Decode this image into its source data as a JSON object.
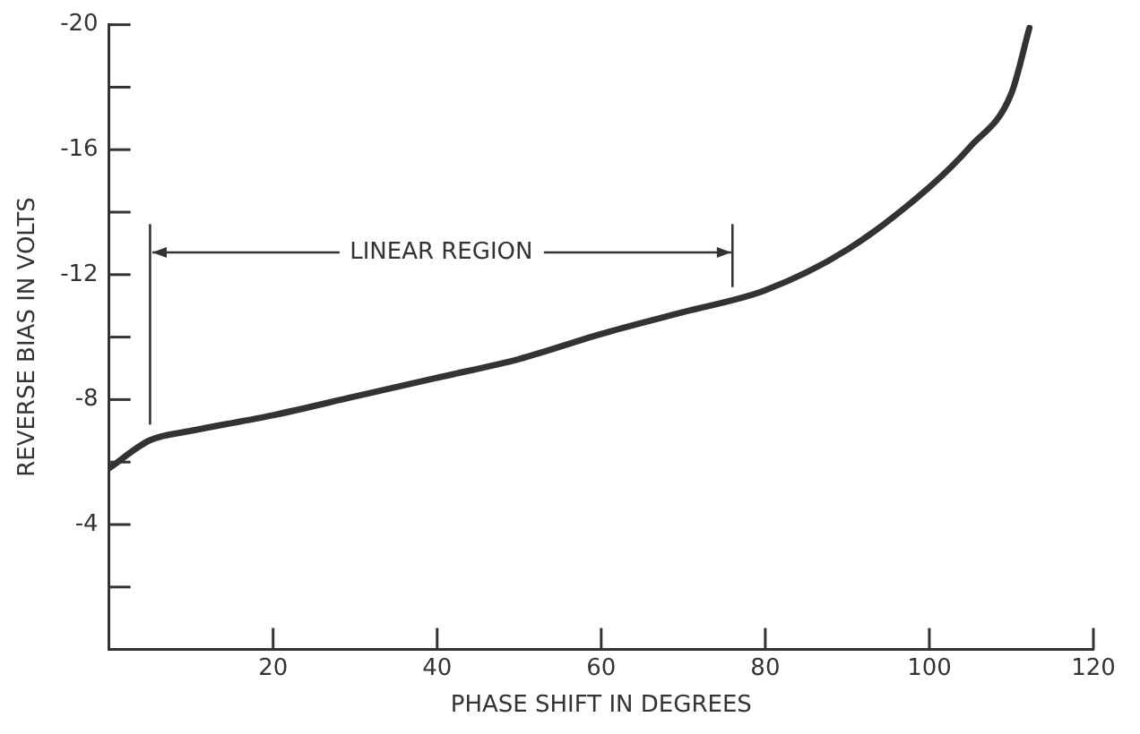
{
  "chart_data": {
    "type": "line",
    "xlabel": "PHASE SHIFT IN DEGREES",
    "ylabel": "REVERSE BIAS IN VOLTS",
    "x": [
      0,
      5,
      10,
      20,
      30,
      40,
      50,
      60,
      70,
      80,
      90,
      100,
      105,
      110,
      112.2
    ],
    "series": [
      {
        "color": "#333333",
        "values": [
          -5.8,
          -6.7,
          -7.0,
          -7.5,
          -8.1,
          -8.7,
          -9.3,
          -10.1,
          -10.8,
          -11.5,
          -12.8,
          -14.8,
          -16.1,
          -17.8,
          -19.9
        ]
      }
    ],
    "xlim": [
      0,
      120
    ],
    "xticks": [
      20,
      40,
      60,
      80,
      100,
      120
    ],
    "ylim": [
      0,
      -20
    ],
    "yticks": [
      {
        "value": -2,
        "label": null
      },
      -4,
      {
        "value": -6,
        "label": null
      },
      -8,
      {
        "value": -10,
        "label": null
      },
      -12,
      {
        "value": -14,
        "label": null
      },
      -16,
      {
        "value": -18,
        "label": null
      },
      -20
    ],
    "ref_lines": [
      {
        "axis": "x",
        "value": 5
      },
      {
        "axis": "x",
        "value": 76
      }
    ],
    "annotations": [
      {
        "text": "LINEAR REGION",
        "x": 5,
        "y": -12.7
      }
    ],
    "grid": false,
    "legend": false,
    "marker": "none",
    "line_style": "solid"
  }
}
